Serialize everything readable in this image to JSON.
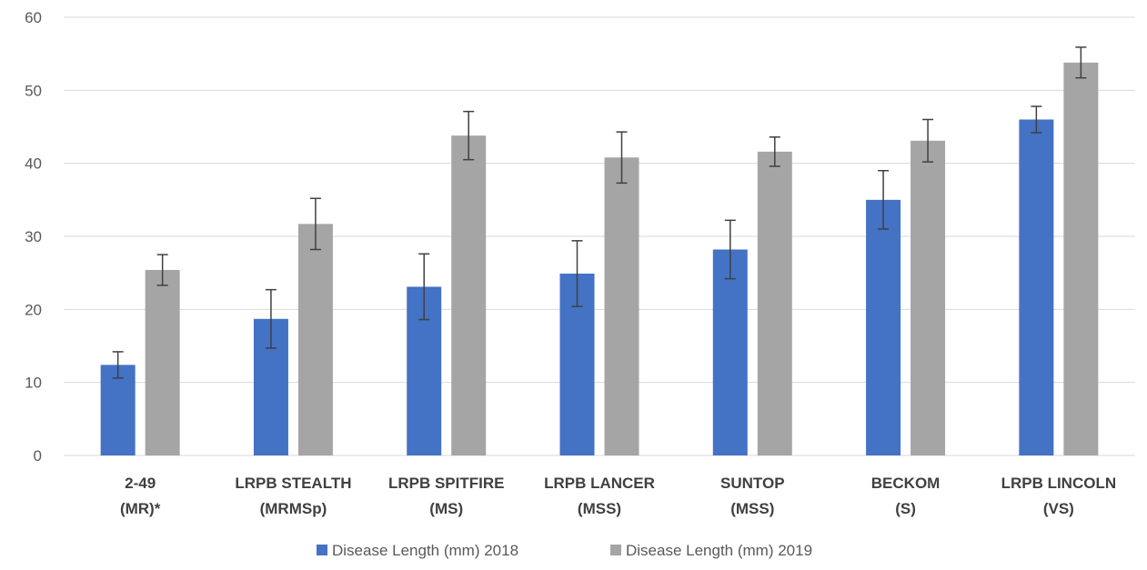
{
  "chart_data": {
    "type": "bar",
    "categories": [
      [
        "2-49",
        "(MR)*"
      ],
      [
        "LRPB STEALTH",
        "(MRMSp)"
      ],
      [
        "LRPB SPITFIRE",
        "(MS)"
      ],
      [
        "LRPB LANCER",
        "(MSS)"
      ],
      [
        "SUNTOP",
        "(MSS)"
      ],
      [
        "BECKOM",
        "(S)"
      ],
      [
        "LRPB LINCOLN",
        "(VS)"
      ]
    ],
    "series": [
      {
        "name": "Disease Length (mm) 2018",
        "color": "#4472C4",
        "values": [
          12.4,
          18.7,
          23.1,
          24.9,
          28.2,
          35.0,
          46.0
        ],
        "errors": [
          1.8,
          4.0,
          4.5,
          4.5,
          4.0,
          4.0,
          1.8
        ]
      },
      {
        "name": "Disease Length (mm) 2019",
        "color": "#A5A5A5",
        "values": [
          25.4,
          31.7,
          43.8,
          40.8,
          41.6,
          43.1,
          53.8
        ],
        "errors": [
          2.1,
          3.5,
          3.3,
          3.5,
          2.0,
          2.9,
          2.1
        ]
      }
    ],
    "ylim": [
      0,
      60
    ],
    "yticks": [
      0,
      10,
      20,
      30,
      40,
      50,
      60
    ],
    "grid": true,
    "legend_position": "bottom",
    "title": "",
    "xlabel": "",
    "ylabel": ""
  }
}
